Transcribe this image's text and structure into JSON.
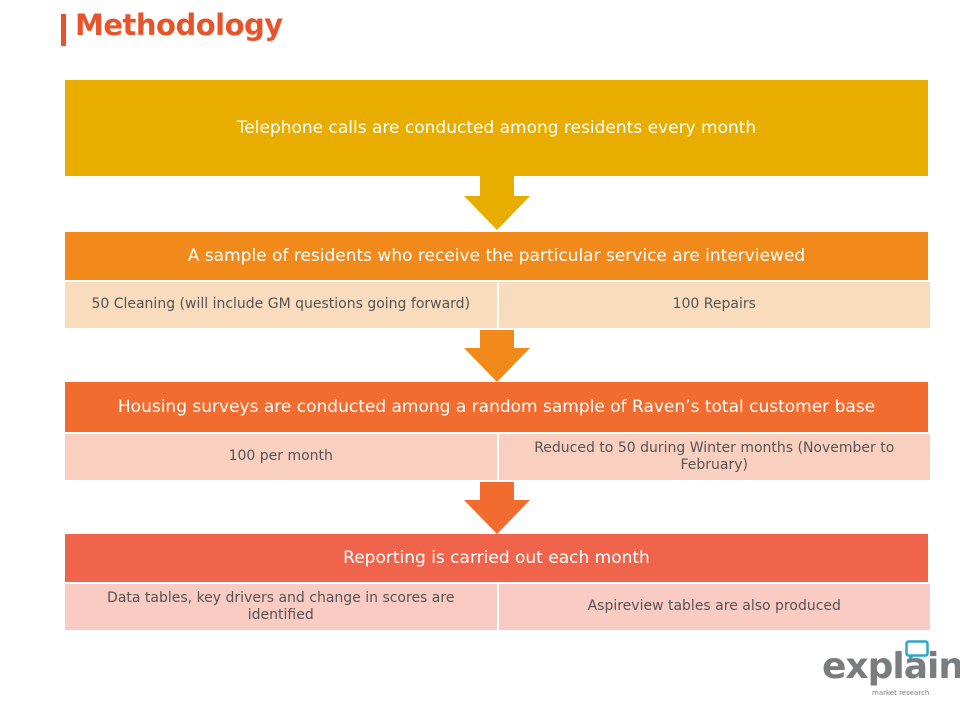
{
  "title": "Methodology",
  "steps": [
    {
      "heading": "Telephone calls are conducted among residents every month",
      "color": "#e9ad00"
    },
    {
      "heading": "A sample of residents who receive the particular service are interviewed",
      "color": "#f28a1b",
      "sub_color": "#f8dcbd",
      "details": [
        "50 Cleaning (will include GM questions going forward)",
        "100 Repairs"
      ]
    },
    {
      "heading": "Housing surveys are conducted among a random sample of Raven’s total customer base",
      "color": "#f26c2f",
      "sub_color": "#f9d0c0",
      "details": [
        "100 per month",
        "Reduced to 50 during Winter months (November to February)"
      ]
    },
    {
      "heading": "Reporting is carried out each month",
      "color": "#ef644a",
      "sub_color": "#f9cbc3",
      "details": [
        "Data tables, key drivers and change in scores are identified",
        "Aspireview tables are also produced"
      ]
    }
  ],
  "logo": {
    "name": "explain",
    "tagline": "market research",
    "icon": "speech-bubble-icon",
    "accent": "#2aa8c7"
  }
}
